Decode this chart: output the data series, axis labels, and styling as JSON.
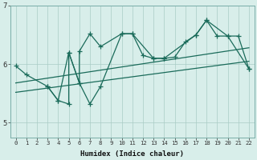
{
  "xlabel": "Humidex (Indice chaleur)",
  "bg_color": "#d8eeea",
  "grid_color": "#aaccc6",
  "line_color": "#1a6b5a",
  "xlim": [
    -0.5,
    22.5
  ],
  "ylim": [
    4.75,
    7.0
  ],
  "yticks": [
    5,
    6,
    7
  ],
  "xticks": [
    0,
    1,
    2,
    3,
    4,
    5,
    6,
    7,
    8,
    9,
    10,
    11,
    12,
    13,
    14,
    15,
    16,
    17,
    18,
    19,
    20,
    21,
    22
  ],
  "series1_x": [
    0,
    1,
    3,
    4,
    5,
    6,
    6,
    7,
    8,
    10,
    11,
    12,
    13,
    14,
    15,
    16,
    17,
    18,
    19,
    20,
    21,
    22
  ],
  "series1_y": [
    5.97,
    5.82,
    5.62,
    5.38,
    6.2,
    5.68,
    6.22,
    6.52,
    6.3,
    6.52,
    6.52,
    6.15,
    6.1,
    6.1,
    6.12,
    6.38,
    6.5,
    6.75,
    6.48,
    6.48,
    6.48,
    5.92
  ],
  "series2_x": [
    3,
    4,
    5,
    5,
    6,
    7,
    8,
    10,
    11,
    13,
    14,
    17,
    18,
    20,
    22
  ],
  "series2_y": [
    5.62,
    5.38,
    5.32,
    6.2,
    5.68,
    5.32,
    5.62,
    6.52,
    6.52,
    6.1,
    6.1,
    6.5,
    6.75,
    6.48,
    5.92
  ],
  "trend1_x": [
    0,
    22
  ],
  "trend1_y": [
    5.68,
    6.28
  ],
  "trend2_x": [
    0,
    22
  ],
  "trend2_y": [
    5.52,
    6.05
  ]
}
